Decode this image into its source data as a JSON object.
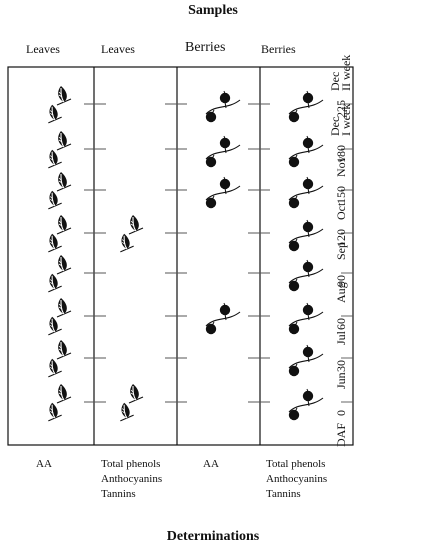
{
  "header": {
    "title": "Samples"
  },
  "footer": {
    "title": "Determinations"
  },
  "columns": [
    {
      "heading": "Leaves",
      "determinations": [
        "AA"
      ]
    },
    {
      "heading": "Leaves",
      "determinations": [
        "Total phenols",
        "Anthocyanins",
        "Tannins"
      ]
    },
    {
      "heading": "Berries",
      "determinations": [
        "AA"
      ]
    },
    {
      "heading": "Berries",
      "determinations": [
        "Total phenols",
        "Anthocyanins",
        "Tannins"
      ]
    }
  ],
  "axis": {
    "label": "DAF",
    "timepoints": [
      {
        "daf": "225",
        "month": [
          "Dec",
          "II week"
        ]
      },
      {
        "daf": "180",
        "month": [
          "Dec",
          "I week"
        ]
      },
      {
        "daf": "150",
        "month": [
          "Nov"
        ]
      },
      {
        "daf": "120",
        "month": [
          "Oct"
        ]
      },
      {
        "daf": "90",
        "month": [
          "Sep"
        ]
      },
      {
        "daf": "60",
        "month": [
          "Aug"
        ]
      },
      {
        "daf": "30",
        "month": [
          "Jul"
        ]
      },
      {
        "daf": "0",
        "month": [
          "Jun"
        ]
      }
    ]
  },
  "samples": {
    "col1_leaves_daf": [
      "225",
      "180",
      "150",
      "120",
      "90",
      "60",
      "30",
      "0"
    ],
    "col2_leaves_daf": [
      "120",
      "0"
    ],
    "col3_berries_daf": [
      "225",
      "180",
      "150",
      "60"
    ],
    "col4_berries_daf": [
      "225",
      "180",
      "150",
      "120",
      "90",
      "60",
      "30",
      "0"
    ]
  },
  "colors": {
    "ink": "#111111",
    "tick": "#555555"
  }
}
